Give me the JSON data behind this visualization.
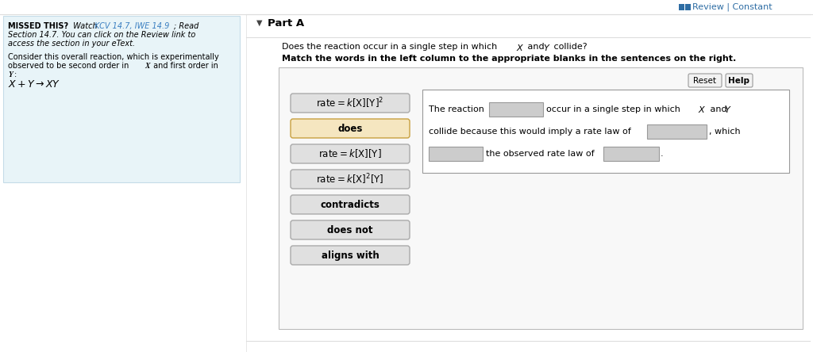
{
  "bg_color": "#ffffff",
  "left_panel_bg": "#e8f4f8",
  "left_panel_border": "#c5dce8",
  "review_icon_color": "#2e6da4",
  "review_text": "Review | Constant",
  "missed_link_color": "#3a7fc1",
  "part_a_label": "Part A",
  "left_items": [
    {
      "text": "rate = k[X][Y]^2",
      "display": "rate = k[⁠X⁠][⁠Y⁠]²",
      "math": true,
      "bg": "#e0e0e0",
      "border": "#aaaaaa",
      "text_color": "#000000",
      "bold": false
    },
    {
      "text": "does",
      "display": "does",
      "math": false,
      "bg": "#f5e6c0",
      "border": "#c8a040",
      "text_color": "#000000",
      "bold": true
    },
    {
      "text": "rate = k[X][Y]",
      "display": "rate = k[⁠X⁠][⁠Y⁠]",
      "math": true,
      "bg": "#e0e0e0",
      "border": "#aaaaaa",
      "text_color": "#000000",
      "bold": false
    },
    {
      "text": "rate = k[X]^2[Y]",
      "display": "rate = k[⁠X⁠]²[⁠Y⁠]",
      "math": true,
      "bg": "#e0e0e0",
      "border": "#aaaaaa",
      "text_color": "#000000",
      "bold": false
    },
    {
      "text": "contradicts",
      "display": "contradicts",
      "math": false,
      "bg": "#e0e0e0",
      "border": "#aaaaaa",
      "text_color": "#000000",
      "bold": true
    },
    {
      "text": "does not",
      "display": "does not",
      "math": false,
      "bg": "#e0e0e0",
      "border": "#aaaaaa",
      "text_color": "#000000",
      "bold": true
    },
    {
      "text": "aligns with",
      "display": "aligns with",
      "math": false,
      "bg": "#e0e0e0",
      "border": "#aaaaaa",
      "text_color": "#000000",
      "bold": true
    }
  ],
  "main_box_bg": "#f8f8f8",
  "main_box_border": "#bbbbbb",
  "right_sentence_box_bg": "#ffffff",
  "right_sentence_box_border": "#999999",
  "blank_bg": "#cccccc",
  "blank_border": "#999999",
  "reset_btn_text": "Reset",
  "help_btn_text": "Help",
  "divider_color": "#dddddd",
  "part_a_arrow_color": "#444444"
}
